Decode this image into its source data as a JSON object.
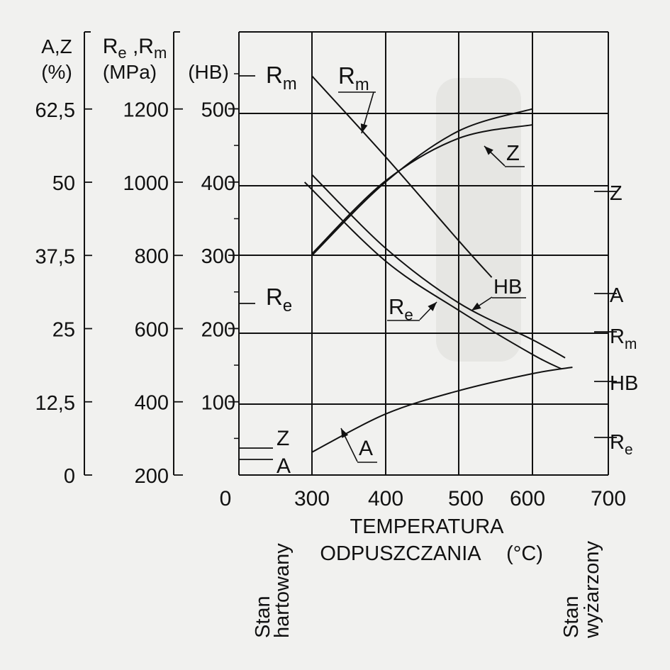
{
  "chart_data": {
    "type": "line",
    "x_axis": {
      "label_line1": "TEMPERATURA",
      "label_line2": "ODPUSZCZANIA",
      "unit": "(°C)",
      "range": [
        200,
        700
      ],
      "ticks": [
        "0",
        "300",
        "400",
        "500",
        "600",
        "700"
      ],
      "stan_left": [
        "Stan",
        "hartowany"
      ],
      "stan_right": [
        "Stan",
        "wyżarzony"
      ]
    },
    "y_axes": [
      {
        "id": "az",
        "title_line1": "A,Z",
        "title_line2": "(%)",
        "ticks": [
          "0",
          "12,5",
          "25",
          "37,5",
          "50",
          "62,5"
        ],
        "range": [
          0,
          62.5
        ]
      },
      {
        "id": "rerm",
        "title_line1": "R",
        "title_sub1": "e",
        "title_sep": " ,",
        "title_line1b": "R",
        "title_sub2": "m",
        "title_line2": "(MPa)",
        "ticks": [
          "200",
          "400",
          "600",
          "800",
          "1000",
          "1200"
        ],
        "range": [
          200,
          1200
        ]
      },
      {
        "id": "hb",
        "title_line1": "(HB)",
        "ticks": [
          "100",
          "200",
          "300",
          "400",
          "500"
        ],
        "range": [
          0,
          500
        ]
      }
    ],
    "series": [
      {
        "name": "R",
        "sub": "m",
        "axis": "rerm",
        "points": [
          [
            300,
            1290
          ],
          [
            400,
            1070
          ],
          [
            500,
            840
          ],
          [
            545,
            740
          ]
        ]
      },
      {
        "name": "R",
        "sub": "e",
        "axis": "rerm",
        "points": [
          [
            300,
            800
          ],
          [
            400,
            1000
          ],
          [
            500,
            1140
          ],
          [
            600,
            1200
          ]
        ]
      },
      {
        "name": "Z",
        "axis": "az",
        "points": [
          [
            300,
            37.8
          ],
          [
            400,
            50.2
          ],
          [
            500,
            57.5
          ],
          [
            600,
            59.8
          ]
        ]
      },
      {
        "name": "HB",
        "axis": "hb",
        "points": [
          [
            300,
            410
          ],
          [
            400,
            310
          ],
          [
            500,
            235
          ],
          [
            600,
            185
          ],
          [
            645,
            160
          ]
        ]
      },
      {
        "name": "R",
        "sub": "e",
        "axis": "rerm",
        "points": [
          [
            290,
            1000
          ],
          [
            400,
            785
          ],
          [
            500,
            650
          ],
          [
            600,
            530
          ],
          [
            640,
            490
          ]
        ]
      },
      {
        "name": "A",
        "axis": "az",
        "points": [
          [
            300,
            3.9
          ],
          [
            400,
            10.4
          ],
          [
            500,
            14.4
          ],
          [
            600,
            17.3
          ],
          [
            655,
            18.4
          ]
        ]
      }
    ],
    "stan_hartowany": {
      "R_m": "R",
      "R_m_sub": "m",
      "R_e": "R",
      "R_e_sub": "e",
      "Z": "Z",
      "A": "A"
    },
    "stan_wyzarzony": [
      {
        "label": "Z"
      },
      {
        "label": "A"
      },
      {
        "label": "R",
        "sub": "m"
      },
      {
        "label": "HB"
      },
      {
        "label": "R",
        "sub": "e"
      }
    ],
    "callout_labels": [
      {
        "label": "R",
        "sub": "m"
      },
      {
        "label": "Z"
      },
      {
        "label": "HB"
      },
      {
        "label": "R",
        "sub": "e"
      },
      {
        "label": "A"
      }
    ],
    "grid": true
  },
  "colors": {
    "ink": "#111111",
    "paper": "#f1f1ef",
    "shadow": "#d2d2cf"
  }
}
